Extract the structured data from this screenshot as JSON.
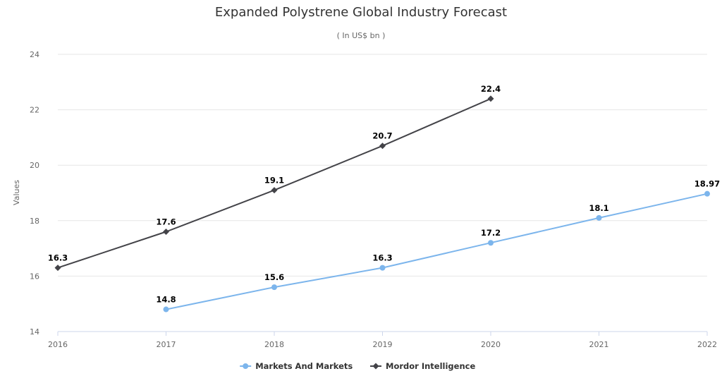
{
  "chart_data": {
    "type": "line",
    "title": "Expanded Polystrene Global Industry Forecast",
    "subtitle": "( In US$ bn )",
    "xlabel": "",
    "ylabel": "Values",
    "categories": [
      "2016",
      "2017",
      "2018",
      "2019",
      "2020",
      "2021",
      "2022"
    ],
    "ylim": [
      14,
      24
    ],
    "yticks": [
      14,
      16,
      18,
      20,
      22,
      24
    ],
    "grid": true,
    "legend_position": "bottom-center",
    "series": [
      {
        "name": "Markets And Markets",
        "color": "#7cb5ec",
        "marker": "circle",
        "values": [
          null,
          14.8,
          15.6,
          16.3,
          17.2,
          18.1,
          18.97
        ],
        "labels": [
          null,
          "14.8",
          "15.6",
          "16.3",
          "17.2",
          "18.1",
          "18.97"
        ]
      },
      {
        "name": "Mordor Intelligence",
        "color": "#434348",
        "marker": "diamond",
        "values": [
          16.3,
          17.6,
          19.1,
          20.7,
          22.4,
          null,
          null
        ],
        "labels": [
          "16.3",
          "17.6",
          "19.1",
          "20.7",
          "22.4",
          null,
          null
        ]
      }
    ]
  }
}
